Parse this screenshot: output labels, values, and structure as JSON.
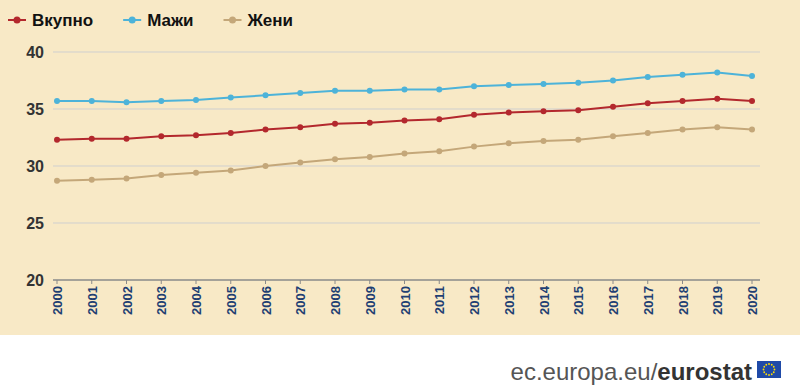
{
  "chart_data": {
    "type": "line",
    "x": [
      2000,
      2001,
      2002,
      2003,
      2004,
      2005,
      2006,
      2007,
      2008,
      2009,
      2010,
      2011,
      2012,
      2013,
      2014,
      2015,
      2016,
      2017,
      2018,
      2019,
      2020
    ],
    "xlim": [
      2000,
      2020
    ],
    "xticks": [
      2000,
      2001,
      2002,
      2003,
      2004,
      2005,
      2006,
      2007,
      2008,
      2009,
      2010,
      2011,
      2012,
      2013,
      2014,
      2015,
      2016,
      2017,
      2018,
      2019,
      2020
    ],
    "ylim": [
      20,
      40
    ],
    "yticks": [
      20,
      25,
      30,
      35,
      40
    ],
    "grid": true,
    "legend": "top-left",
    "marker": "circle",
    "series": [
      {
        "name": "Вкупно",
        "color": "#b3282d",
        "values": [
          32.3,
          32.4,
          32.4,
          32.6,
          32.7,
          32.9,
          33.2,
          33.4,
          33.7,
          33.8,
          34.0,
          34.1,
          34.5,
          34.7,
          34.8,
          34.9,
          35.2,
          35.5,
          35.7,
          35.9,
          35.7
        ]
      },
      {
        "name": "Мажи",
        "color": "#4db3d9",
        "values": [
          35.7,
          35.7,
          35.6,
          35.7,
          35.8,
          36.0,
          36.2,
          36.4,
          36.6,
          36.6,
          36.7,
          36.7,
          37.0,
          37.1,
          37.2,
          37.3,
          37.5,
          37.8,
          38.0,
          38.2,
          37.9
        ]
      },
      {
        "name": "Жени",
        "color": "#c4a779",
        "values": [
          28.7,
          28.8,
          28.9,
          29.2,
          29.4,
          29.6,
          30.0,
          30.3,
          30.6,
          30.8,
          31.1,
          31.3,
          31.7,
          32.0,
          32.2,
          32.3,
          32.6,
          32.9,
          33.2,
          33.4,
          33.2
        ]
      }
    ],
    "annotations": [
      "ec.europa.eu/",
      "eurostat"
    ]
  }
}
